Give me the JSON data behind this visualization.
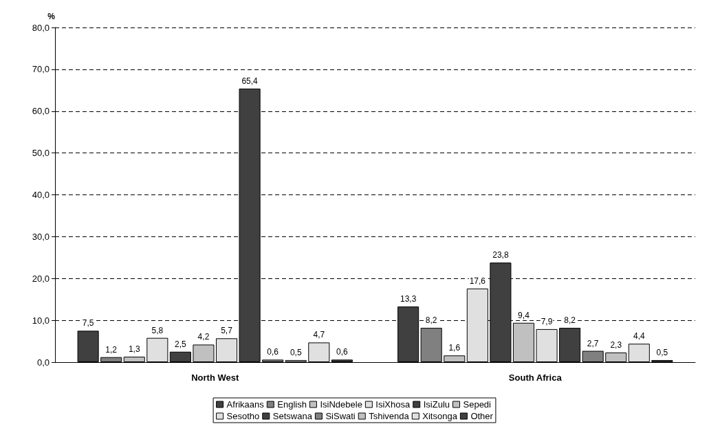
{
  "chart_data": {
    "type": "bar",
    "ylabel": "%",
    "categories": [
      "North West",
      "South Africa"
    ],
    "ylim": [
      0,
      80
    ],
    "yticks": [
      {
        "value": 0,
        "label": "0,0"
      },
      {
        "value": 10,
        "label": "10,0"
      },
      {
        "value": 20,
        "label": "20,0"
      },
      {
        "value": 30,
        "label": "30,0"
      },
      {
        "value": 40,
        "label": "40,0"
      },
      {
        "value": 50,
        "label": "50,0"
      },
      {
        "value": 60,
        "label": "60,0"
      },
      {
        "value": 70,
        "label": "70,0"
      },
      {
        "value": 80,
        "label": "80,0"
      }
    ],
    "grid": "y",
    "legend": "bottom",
    "series": [
      {
        "name": "Afrikaans",
        "color": "#404040",
        "values": [
          7.5,
          13.3
        ],
        "value_labels": [
          "7,5",
          "13,3"
        ]
      },
      {
        "name": "English",
        "color": "#808080",
        "values": [
          1.2,
          8.2
        ],
        "value_labels": [
          "1,2",
          "8,2"
        ]
      },
      {
        "name": "IsiNdebele",
        "color": "#c0c0c0",
        "values": [
          1.3,
          1.6
        ],
        "value_labels": [
          "1,3",
          "1,6"
        ]
      },
      {
        "name": "IsiXhosa",
        "color": "#e0e0e0",
        "values": [
          5.8,
          17.6
        ],
        "value_labels": [
          "5,8",
          "17,6"
        ]
      },
      {
        "name": "IsiZulu",
        "color": "#404040",
        "values": [
          2.5,
          23.8
        ],
        "value_labels": [
          "2,5",
          "23,8"
        ]
      },
      {
        "name": "Sepedi",
        "color": "#c0c0c0",
        "values": [
          4.2,
          9.4
        ],
        "value_labels": [
          "4,2",
          "9,4"
        ]
      },
      {
        "name": "Sesotho",
        "color": "#e0e0e0",
        "values": [
          5.7,
          7.9
        ],
        "value_labels": [
          "5,7",
          "7,9"
        ]
      },
      {
        "name": "Setswana",
        "color": "#404040",
        "values": [
          65.4,
          8.2
        ],
        "value_labels": [
          "65,4",
          "8,2"
        ]
      },
      {
        "name": "SiSwati",
        "color": "#808080",
        "values": [
          0.6,
          2.7
        ],
        "value_labels": [
          "0,6",
          "2,7"
        ]
      },
      {
        "name": "Tshivenda",
        "color": "#c0c0c0",
        "values": [
          0.5,
          2.3
        ],
        "value_labels": [
          "0,5",
          "2,3"
        ]
      },
      {
        "name": "Xitsonga",
        "color": "#e0e0e0",
        "values": [
          4.7,
          4.4
        ],
        "value_labels": [
          "4,7",
          "4,4"
        ]
      },
      {
        "name": "Other",
        "color": "#404040",
        "values": [
          0.6,
          0.5
        ],
        "value_labels": [
          "0,6",
          "0,5"
        ]
      }
    ]
  }
}
